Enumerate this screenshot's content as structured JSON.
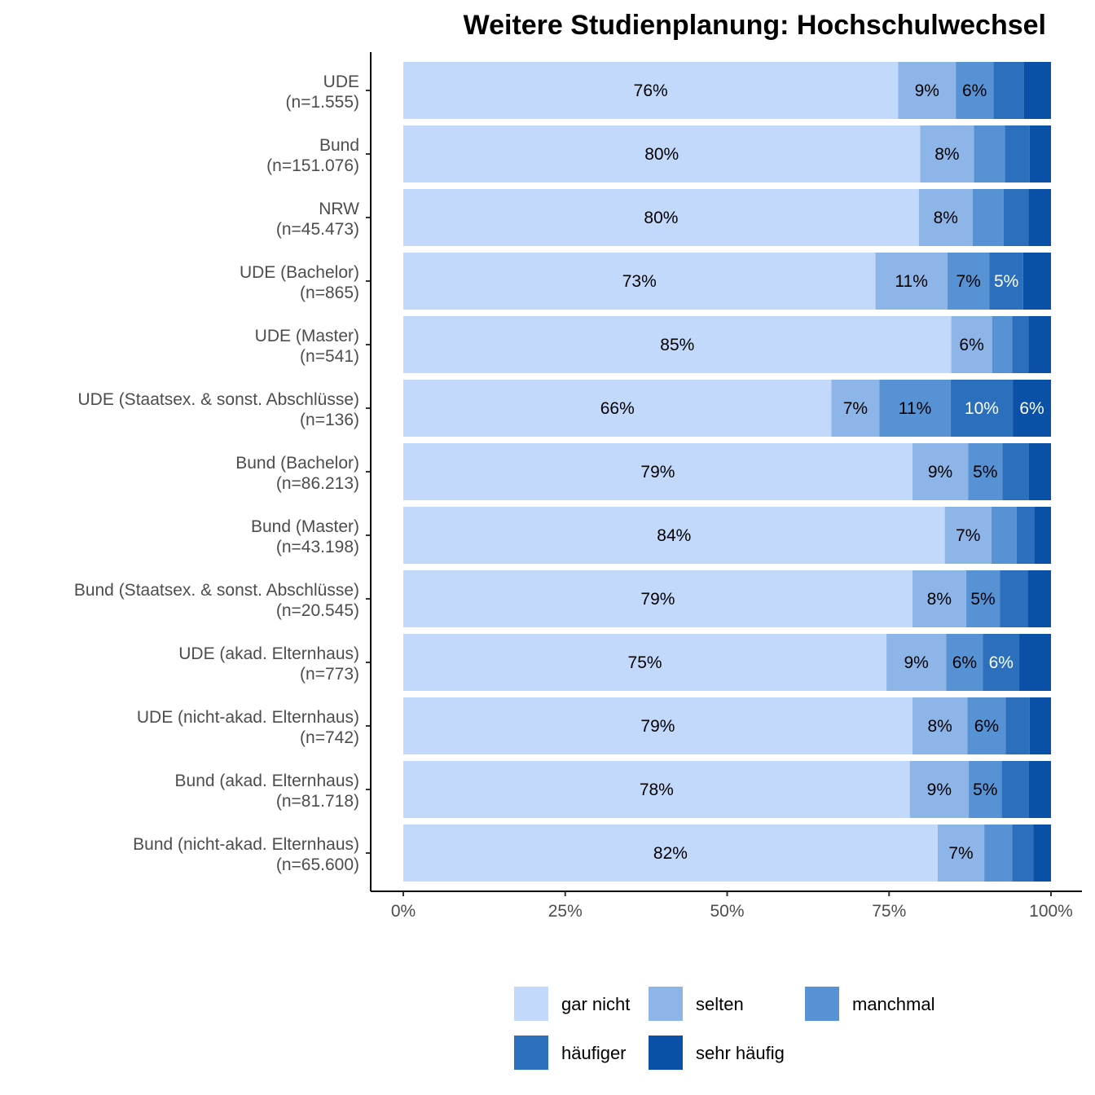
{
  "chart_data": {
    "type": "bar",
    "orientation": "horizontal",
    "stacked": true,
    "title": "Weitere Studienplanung: Hochschulwechsel",
    "xlabel": "",
    "ylabel": "",
    "xlim": [
      0,
      100
    ],
    "x_ticks": [
      "0%",
      "25%",
      "50%",
      "75%",
      "100%"
    ],
    "x_tick_values": [
      0,
      25,
      50,
      75,
      100
    ],
    "grid": false,
    "legend_position": "bottom",
    "categories": [
      [
        "UDE",
        "(n=1.555)"
      ],
      [
        "Bund",
        "(n=151.076)"
      ],
      [
        "NRW",
        "(n=45.473)"
      ],
      [
        "UDE (Bachelor)",
        "(n=865)"
      ],
      [
        "UDE (Master)",
        "(n=541)"
      ],
      [
        "UDE (Staatsex. & sonst. Abschlüsse)",
        "(n=136)"
      ],
      [
        "Bund (Bachelor)",
        "(n=86.213)"
      ],
      [
        "Bund (Master)",
        "(n=43.198)"
      ],
      [
        "Bund (Staatsex. & sonst. Abschlüsse)",
        "(n=20.545)"
      ],
      [
        "UDE (akad. Elternhaus)",
        "(n=773)"
      ],
      [
        "UDE (nicht-akad. Elternhaus)",
        "(n=742)"
      ],
      [
        "Bund (akad. Elternhaus)",
        "(n=81.718)"
      ],
      [
        "Bund (nicht-akad. Elternhaus)",
        "(n=65.600)"
      ]
    ],
    "series": [
      {
        "name": "gar nicht",
        "color": "#c2d9fc",
        "label_color": "#000000",
        "values": [
          76.4,
          79.8,
          79.6,
          72.9,
          84.6,
          66.1,
          78.6,
          83.6,
          78.6,
          74.6,
          78.6,
          78.2,
          82.5
        ],
        "labels": [
          "76%",
          "80%",
          "80%",
          "73%",
          "85%",
          "66%",
          "79%",
          "84%",
          "79%",
          "75%",
          "79%",
          "78%",
          "82%"
        ]
      },
      {
        "name": "selten",
        "color": "#8db5e8",
        "label_color": "#000000",
        "values": [
          8.9,
          8.3,
          8.3,
          11.1,
          6.3,
          7.4,
          8.6,
          7.2,
          8.3,
          9.2,
          8.5,
          9.1,
          7.2
        ],
        "labels": [
          "9%",
          "8%",
          "8%",
          "11%",
          "6%",
          "7%",
          "9%",
          "7%",
          "8%",
          "9%",
          "8%",
          "9%",
          "7%"
        ]
      },
      {
        "name": "manchmal",
        "color": "#5793d4",
        "label_color": "#000000",
        "values": [
          5.8,
          4.8,
          4.8,
          6.5,
          3.1,
          11.0,
          5.3,
          3.9,
          5.2,
          5.7,
          5.9,
          5.1,
          4.3
        ],
        "labels": [
          "6%",
          "",
          "",
          "7%",
          "",
          "11%",
          "5%",
          "",
          "5%",
          "6%",
          "6%",
          "5%",
          ""
        ],
        "label_colors": [
          "#000000",
          "#000000",
          "#000000",
          "#000000",
          "#000000",
          "#000000",
          "#000000",
          "#000000",
          "#000000",
          "#000000",
          "#000000",
          "#000000",
          "#000000"
        ]
      },
      {
        "name": "häufiger",
        "color": "#2b6fbd",
        "label_color": "#ffffff",
        "values": [
          4.7,
          3.8,
          3.8,
          5.2,
          2.5,
          9.6,
          4.1,
          2.7,
          4.3,
          5.6,
          3.7,
          4.2,
          3.3
        ],
        "labels": [
          "",
          "",
          "",
          "5%",
          "",
          "10%",
          "",
          "",
          "",
          "6%",
          "",
          "",
          ""
        ]
      },
      {
        "name": "sehr häufig",
        "color": "#0a50a6",
        "label_color": "#ffffff",
        "values": [
          4.2,
          3.3,
          3.5,
          4.3,
          3.5,
          5.9,
          3.4,
          2.6,
          3.6,
          4.9,
          3.3,
          3.4,
          2.7
        ],
        "labels": [
          "",
          "",
          "",
          "",
          "",
          "6%",
          "",
          "",
          "",
          "",
          "",
          "",
          ""
        ]
      }
    ]
  }
}
